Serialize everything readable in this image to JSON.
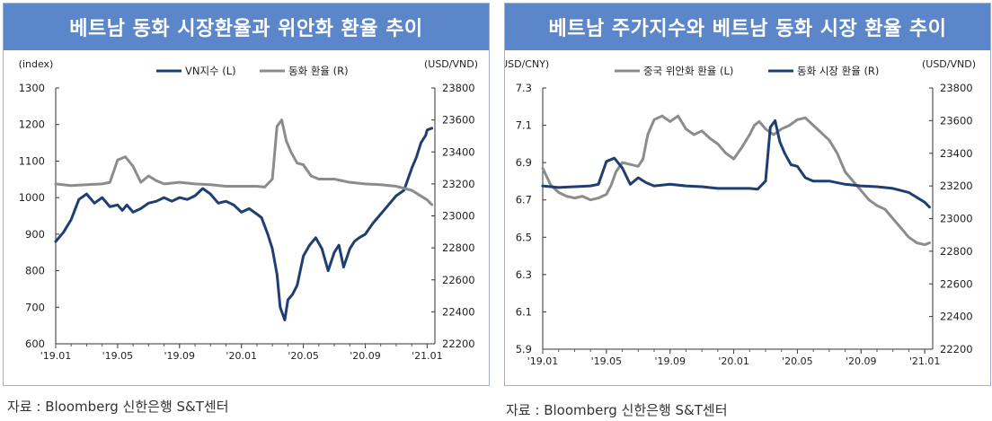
{
  "source_text": "자료 : Bloomberg 신한은행 S&T센터",
  "chart_data": [
    {
      "type": "line",
      "title": "베트남 동화 시장환율과 위안화 환율 추이",
      "left_axis_label": "(index)",
      "right_axis_label": "(USD/VND)",
      "x_tick_labels": [
        "'19.01",
        "'19.05",
        "'19.09",
        "'20.01",
        "'20.05",
        "'20.09",
        "'21.01"
      ],
      "x_ticks": [
        0,
        4,
        8,
        12,
        16,
        20,
        24
      ],
      "x_range": [
        0,
        24.5
      ],
      "y_left": {
        "min": 600,
        "max": 1300,
        "ticks": [
          600,
          700,
          800,
          900,
          1000,
          1100,
          1200,
          1300
        ]
      },
      "y_right": {
        "min": 22200,
        "max": 23800,
        "ticks": [
          22200,
          22400,
          22600,
          22800,
          23000,
          23200,
          23400,
          23600,
          23800
        ]
      },
      "series": [
        {
          "name": "VN지수 (L)",
          "axis": "left",
          "color": "#1f3f73",
          "x": [
            0,
            0.5,
            1,
            1.5,
            2,
            2.5,
            3,
            3.5,
            4,
            4.3,
            4.6,
            5,
            5.5,
            6,
            6.5,
            7,
            7.5,
            8,
            8.5,
            9,
            9.5,
            10,
            10.5,
            11,
            11.5,
            12,
            12.5,
            13,
            13.3,
            13.7,
            14,
            14.3,
            14.5,
            14.8,
            15,
            15.3,
            15.6,
            16,
            16.4,
            16.8,
            17.2,
            17.6,
            18,
            18.3,
            18.6,
            19,
            19.3,
            19.6,
            20,
            20.5,
            21,
            21.5,
            22,
            22.5,
            23,
            23.3,
            23.6,
            23.9,
            24,
            24.3
          ],
          "y": [
            880,
            905,
            940,
            995,
            1010,
            985,
            1000,
            975,
            980,
            965,
            980,
            960,
            970,
            985,
            990,
            1000,
            990,
            1000,
            995,
            1005,
            1025,
            1010,
            985,
            990,
            980,
            960,
            970,
            955,
            945,
            900,
            860,
            790,
            700,
            665,
            720,
            735,
            760,
            840,
            870,
            890,
            860,
            800,
            850,
            870,
            810,
            860,
            880,
            890,
            900,
            930,
            955,
            980,
            1005,
            1020,
            1080,
            1110,
            1150,
            1170,
            1185,
            1190
          ]
        },
        {
          "name": "동화 환율 (R)",
          "axis": "right",
          "color": "#8c8c8c",
          "x": [
            0,
            1,
            2,
            3,
            3.5,
            4,
            4.5,
            5,
            5.5,
            6,
            6.5,
            7,
            8,
            9,
            10,
            11,
            12,
            13,
            13.5,
            14,
            14.3,
            14.6,
            14.9,
            15.2,
            15.6,
            16,
            16.5,
            17,
            18,
            19,
            20,
            21,
            22,
            23,
            23.5,
            24,
            24.3
          ],
          "y": [
            23200,
            23190,
            23195,
            23200,
            23210,
            23350,
            23370,
            23310,
            23210,
            23250,
            23220,
            23200,
            23210,
            23200,
            23195,
            23185,
            23185,
            23185,
            23180,
            23230,
            23560,
            23600,
            23470,
            23400,
            23330,
            23320,
            23250,
            23230,
            23230,
            23210,
            23200,
            23195,
            23185,
            23160,
            23130,
            23100,
            23070
          ]
        }
      ]
    },
    {
      "type": "line",
      "title": "베트남 주가지수와 베트남 동화 시장 환율 추이",
      "left_axis_label": "(USD/CNY)",
      "right_axis_label": "(USD/VND)",
      "x_tick_labels": [
        "'19.01",
        "'19.05",
        "'19.09",
        "'20.01",
        "'20.05",
        "'20.09",
        "'21.01"
      ],
      "x_ticks": [
        0,
        4,
        8,
        12,
        16,
        20,
        24
      ],
      "x_range": [
        0,
        24.5
      ],
      "y_left": {
        "min": 5.9,
        "max": 7.3,
        "ticks": [
          5.9,
          6.1,
          6.3,
          6.5,
          6.7,
          6.9,
          7.1,
          7.3
        ]
      },
      "y_right": {
        "min": 22200,
        "max": 23800,
        "ticks": [
          22200,
          22400,
          22600,
          22800,
          23000,
          23200,
          23400,
          23600,
          23800
        ]
      },
      "series": [
        {
          "name": "중국 위안화 환율 (L)",
          "axis": "left",
          "color": "#8c8c8c",
          "x": [
            0,
            0.5,
            1,
            1.5,
            2,
            2.5,
            3,
            3.5,
            4,
            4.3,
            4.6,
            5,
            5.5,
            6,
            6.3,
            6.6,
            7,
            7.5,
            8,
            8.5,
            9,
            9.5,
            10,
            10.5,
            11,
            11.5,
            12,
            12.5,
            13,
            13.3,
            13.6,
            14,
            14.5,
            15,
            15.5,
            16,
            16.5,
            17,
            17.5,
            18,
            18.5,
            19,
            19.5,
            20,
            20.5,
            21,
            21.5,
            22,
            22.5,
            23,
            23.5,
            24,
            24.3
          ],
          "y": [
            6.87,
            6.78,
            6.74,
            6.72,
            6.71,
            6.72,
            6.7,
            6.71,
            6.73,
            6.78,
            6.85,
            6.9,
            6.89,
            6.88,
            6.92,
            7.05,
            7.13,
            7.15,
            7.12,
            7.15,
            7.08,
            7.05,
            7.07,
            7.03,
            7.0,
            6.95,
            6.92,
            6.98,
            7.05,
            7.1,
            7.12,
            7.08,
            7.05,
            7.08,
            7.1,
            7.13,
            7.14,
            7.1,
            7.06,
            7.02,
            6.95,
            6.85,
            6.8,
            6.75,
            6.7,
            6.67,
            6.65,
            6.6,
            6.55,
            6.5,
            6.47,
            6.46,
            6.47
          ]
        },
        {
          "name": "동화 시장 환율 (R)",
          "axis": "right",
          "color": "#1f3f73",
          "x": [
            0,
            1,
            2,
            3,
            3.5,
            4,
            4.5,
            5,
            5.5,
            6,
            6.5,
            7,
            8,
            9,
            10,
            11,
            12,
            13,
            13.5,
            14,
            14.3,
            14.6,
            14.9,
            15.2,
            15.6,
            16,
            16.5,
            17,
            18,
            19,
            20,
            21,
            22,
            23,
            23.5,
            24,
            24.3
          ],
          "y": [
            23200,
            23190,
            23195,
            23200,
            23210,
            23350,
            23370,
            23310,
            23210,
            23250,
            23220,
            23200,
            23210,
            23200,
            23195,
            23185,
            23185,
            23185,
            23180,
            23230,
            23560,
            23600,
            23470,
            23400,
            23330,
            23320,
            23250,
            23230,
            23230,
            23210,
            23200,
            23195,
            23185,
            23160,
            23130,
            23100,
            23070
          ]
        }
      ]
    }
  ]
}
